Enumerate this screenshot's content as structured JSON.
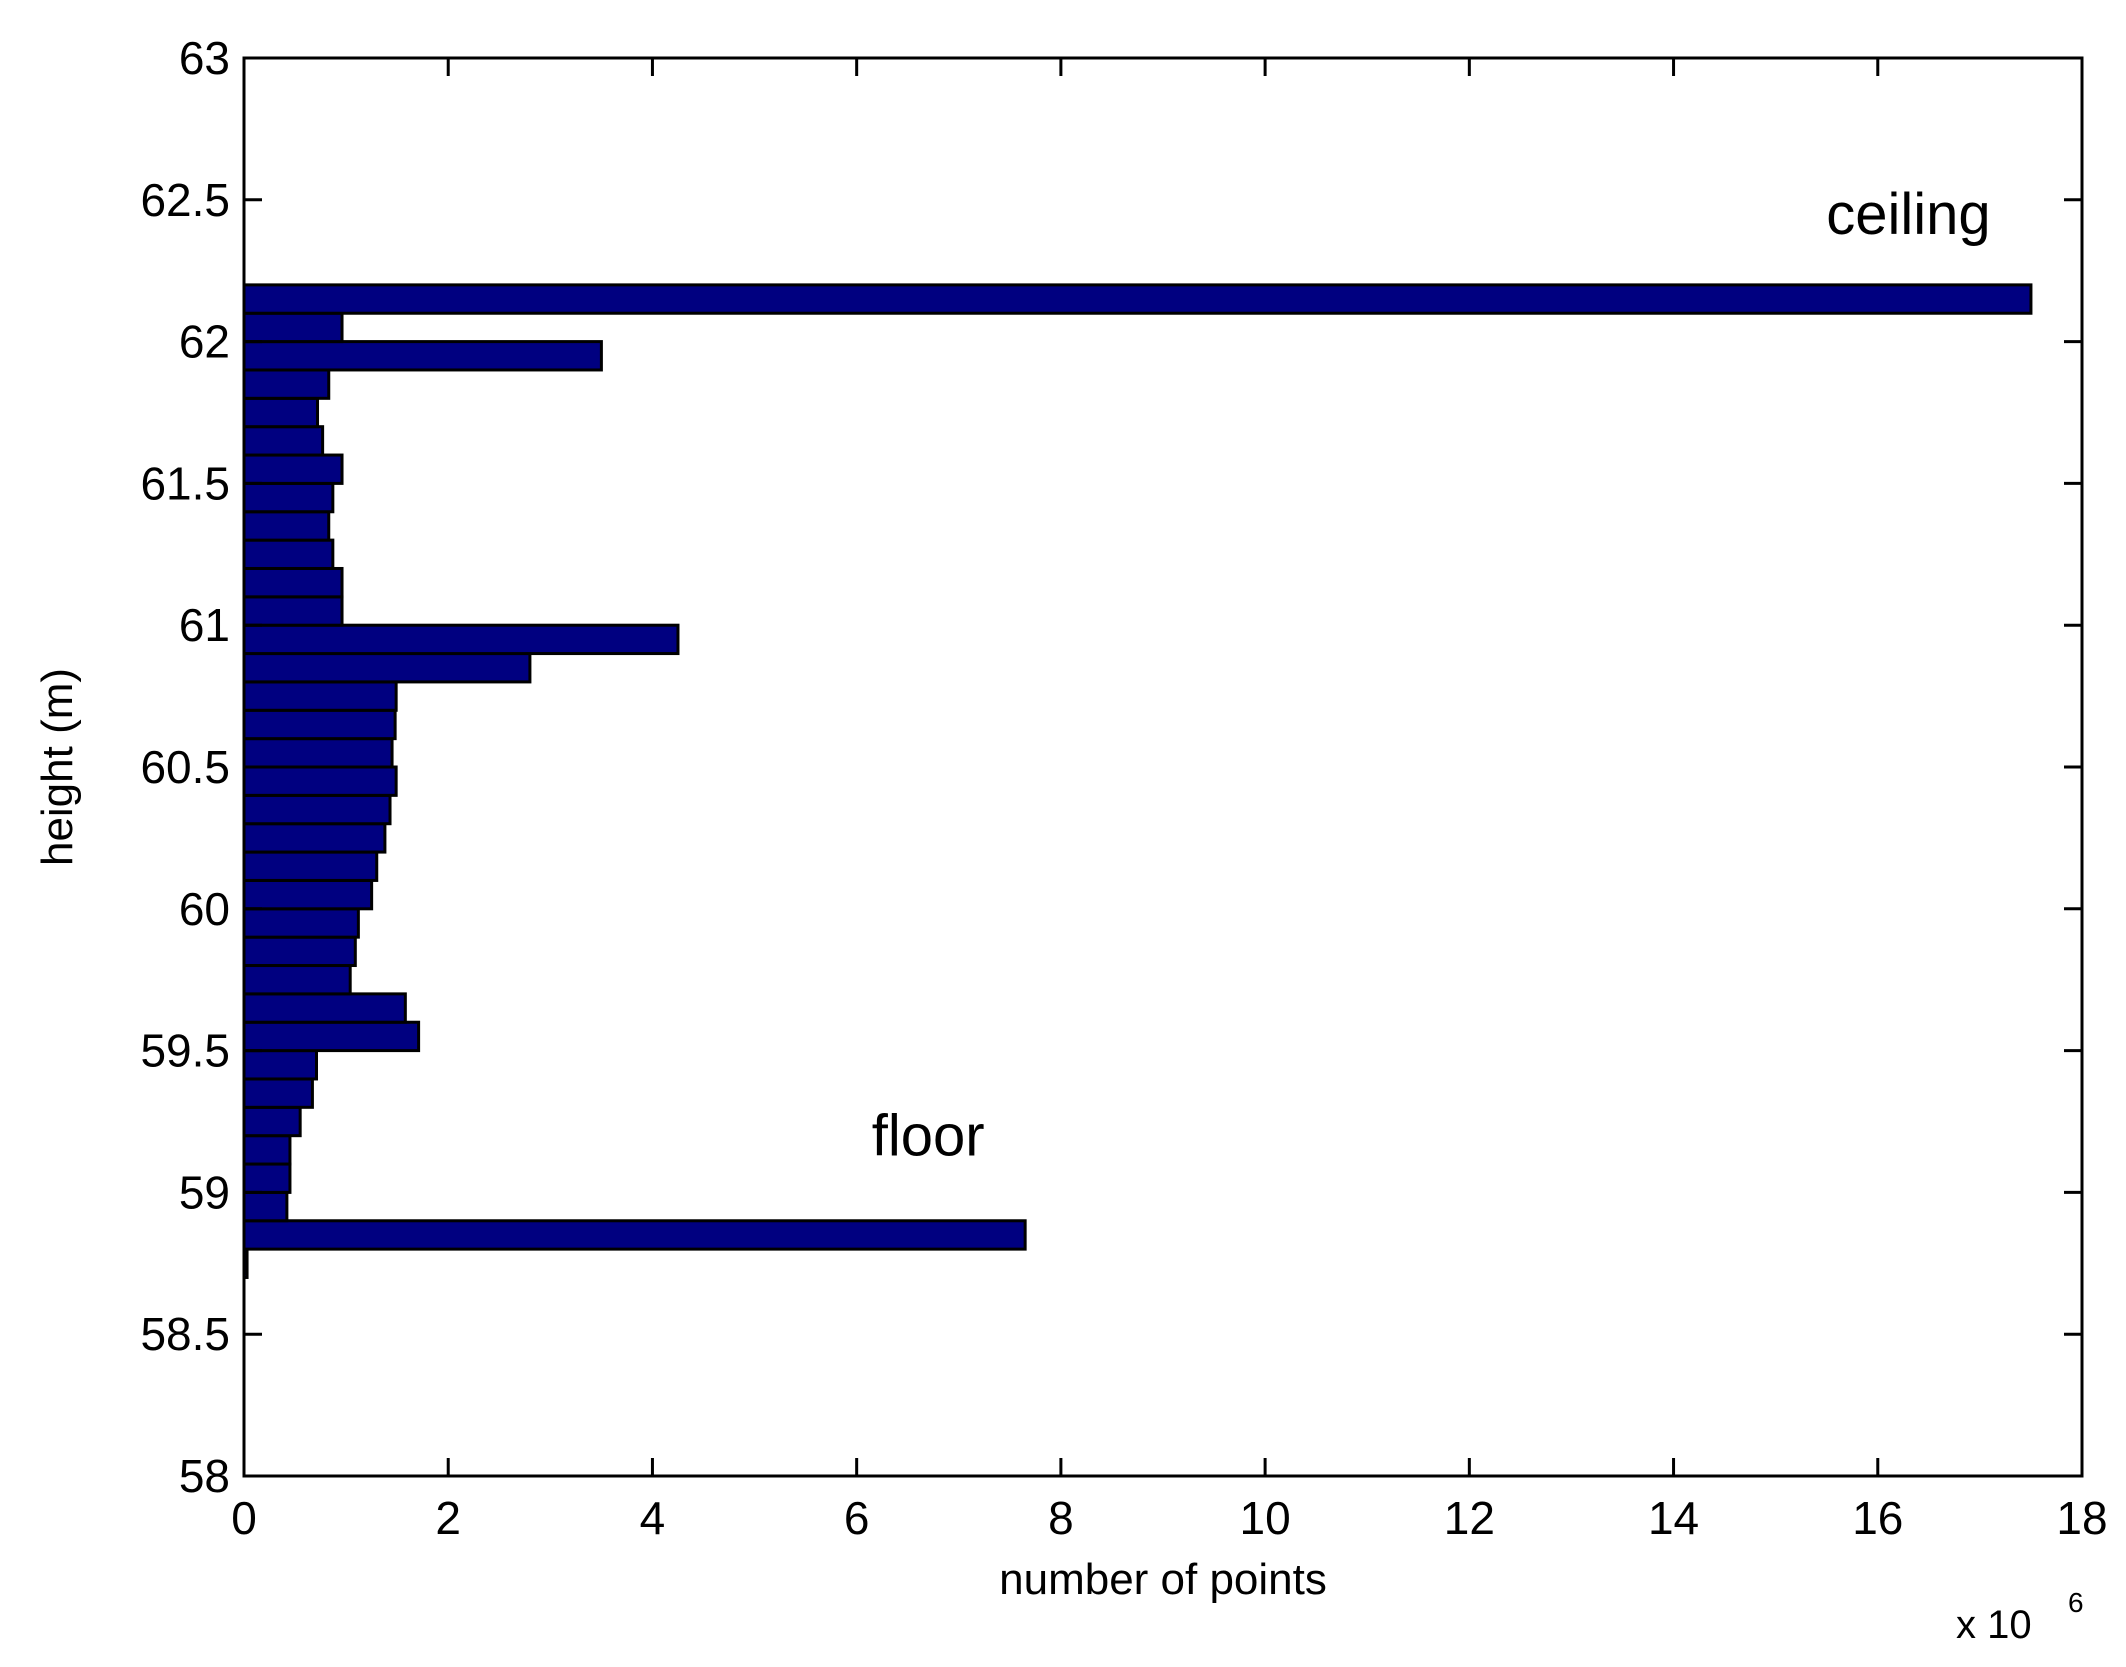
{
  "chart_data": {
    "type": "bar",
    "orientation": "horizontal",
    "title": "",
    "xlabel": "number of points",
    "ylabel": "height (m)",
    "x_multiplier": "x 10",
    "x_multiplier_exponent": "6",
    "xlim": [
      0,
      18
    ],
    "ylim": [
      58,
      63
    ],
    "x_ticks": [
      "0",
      "2",
      "4",
      "6",
      "8",
      "10",
      "12",
      "14",
      "16",
      "18"
    ],
    "y_ticks": [
      "58",
      "58.5",
      "59",
      "59.5",
      "60",
      "60.5",
      "61",
      "61.5",
      "62",
      "62.5",
      "63"
    ],
    "bin_width": 0.1,
    "bar_color": "#000080",
    "grid": false,
    "series": [
      {
        "bins": [
          {
            "y": 58.7,
            "value": 0.03
          },
          {
            "y": 58.8,
            "value": 7.65
          },
          {
            "y": 58.9,
            "value": 0.42
          },
          {
            "y": 59.0,
            "value": 0.45
          },
          {
            "y": 59.1,
            "value": 0.45
          },
          {
            "y": 59.2,
            "value": 0.55
          },
          {
            "y": 59.3,
            "value": 0.67
          },
          {
            "y": 59.4,
            "value": 0.71
          },
          {
            "y": 59.5,
            "value": 1.71
          },
          {
            "y": 59.6,
            "value": 1.58
          },
          {
            "y": 59.7,
            "value": 1.04
          },
          {
            "y": 59.8,
            "value": 1.09
          },
          {
            "y": 59.9,
            "value": 1.12
          },
          {
            "y": 60.0,
            "value": 1.25
          },
          {
            "y": 60.1,
            "value": 1.3
          },
          {
            "y": 60.2,
            "value": 1.38
          },
          {
            "y": 60.3,
            "value": 1.43
          },
          {
            "y": 60.4,
            "value": 1.49
          },
          {
            "y": 60.5,
            "value": 1.45
          },
          {
            "y": 60.6,
            "value": 1.48
          },
          {
            "y": 60.7,
            "value": 1.49
          },
          {
            "y": 60.8,
            "value": 2.8
          },
          {
            "y": 60.9,
            "value": 4.25
          },
          {
            "y": 61.0,
            "value": 0.96
          },
          {
            "y": 61.1,
            "value": 0.96
          },
          {
            "y": 61.2,
            "value": 0.87
          },
          {
            "y": 61.3,
            "value": 0.83
          },
          {
            "y": 61.4,
            "value": 0.87
          },
          {
            "y": 61.5,
            "value": 0.96
          },
          {
            "y": 61.6,
            "value": 0.77
          },
          {
            "y": 61.7,
            "value": 0.72
          },
          {
            "y": 61.8,
            "value": 0.83
          },
          {
            "y": 61.9,
            "value": 3.5
          },
          {
            "y": 62.0,
            "value": 0.96
          },
          {
            "y": 62.1,
            "value": 17.5
          }
        ]
      }
    ],
    "annotations": [
      {
        "text": "ceiling",
        "x": 16.3,
        "y": 62.38
      },
      {
        "text": "floor",
        "x": 6.7,
        "y": 59.13
      }
    ]
  }
}
